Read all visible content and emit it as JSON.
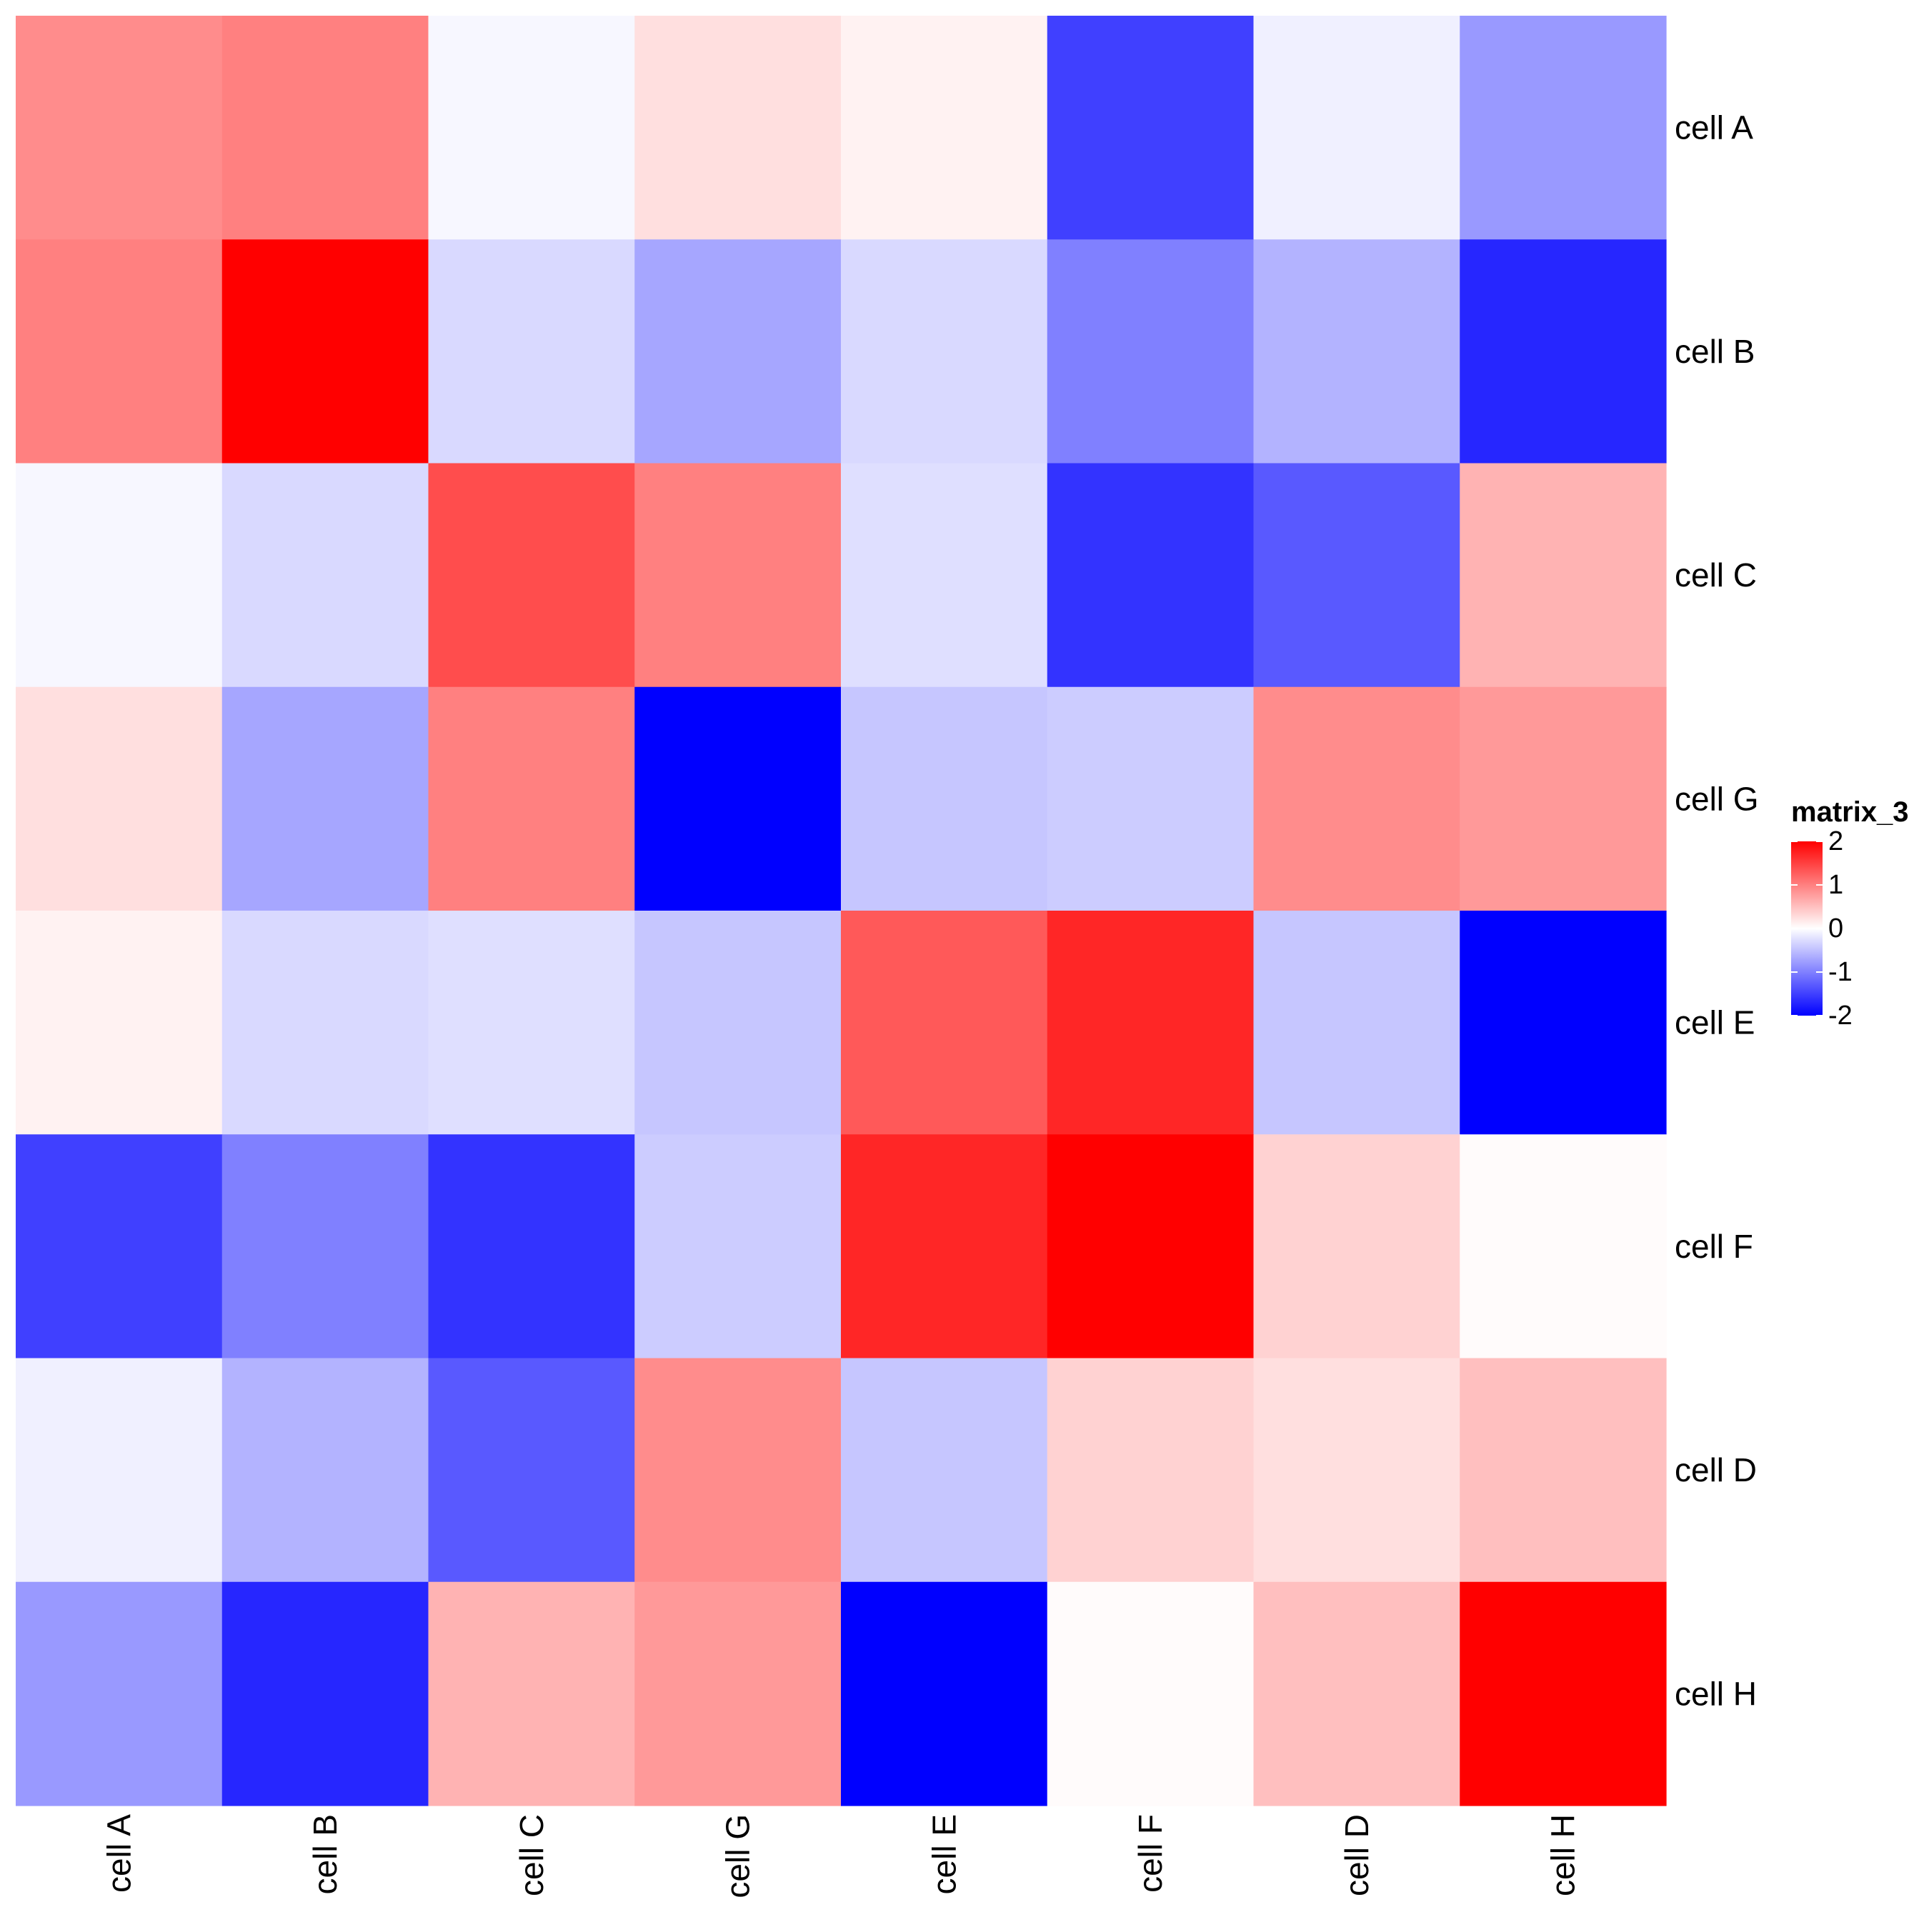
{
  "chart_data": {
    "type": "heatmap",
    "title": "",
    "rows": [
      "cell A",
      "cell B",
      "cell C",
      "cell G",
      "cell E",
      "cell F",
      "cell D",
      "cell H"
    ],
    "columns": [
      "cell A",
      "cell B",
      "cell C",
      "cell G",
      "cell E",
      "cell F",
      "cell D",
      "cell H"
    ],
    "values": [
      [
        0.9,
        1.0,
        -0.06,
        0.25,
        0.1,
        -1.5,
        -0.12,
        -0.8
      ],
      [
        1.0,
        2.0,
        -0.3,
        -0.7,
        -0.3,
        -1.0,
        -0.6,
        -1.7
      ],
      [
        -0.06,
        -0.3,
        1.4,
        1.0,
        -0.25,
        -1.6,
        -1.3,
        0.6
      ],
      [
        0.25,
        -0.7,
        1.0,
        -2.0,
        -0.45,
        -0.4,
        0.9,
        0.8
      ],
      [
        0.1,
        -0.3,
        -0.25,
        -0.45,
        1.3,
        1.7,
        -0.45,
        -2.0
      ],
      [
        -1.5,
        -1.0,
        -1.6,
        -0.4,
        1.7,
        2.0,
        0.35,
        0.03
      ],
      [
        -0.12,
        -0.6,
        -1.3,
        0.9,
        -0.45,
        0.35,
        0.25,
        0.5
      ],
      [
        -0.8,
        -1.7,
        0.6,
        0.8,
        -2.0,
        0.03,
        0.5,
        2.0
      ]
    ],
    "legend": {
      "title": "matrix_3",
      "ticks": [
        2,
        1,
        0,
        -1,
        -2
      ],
      "tick_labels": [
        "2",
        "1",
        "0",
        "-1",
        "-2"
      ],
      "range": [
        -2,
        2
      ],
      "colors": {
        "low": "#0000FF",
        "mid": "#FFFFFF",
        "high": "#FF0000"
      },
      "placement": "right"
    }
  }
}
